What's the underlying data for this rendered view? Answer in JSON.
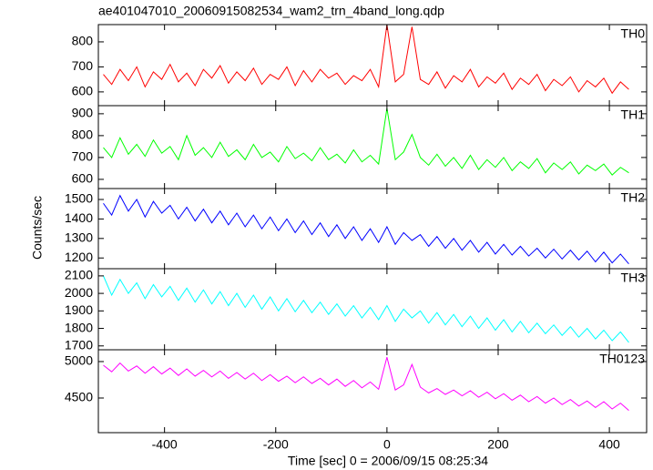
{
  "title": "ae401047010_20060915082534_wam2_trn_4band_long.qdp",
  "xlabel": "Time [sec] 0 = 2006/09/15 08:25:34",
  "ylabel": "Counts/sec",
  "chart_data": [
    {
      "type": "line",
      "x": [
        -510,
        -495,
        -480,
        -465,
        -450,
        -435,
        -420,
        -405,
        -390,
        -375,
        -360,
        -345,
        -330,
        -315,
        -300,
        -285,
        -270,
        -255,
        -240,
        -225,
        -210,
        -195,
        -180,
        -165,
        -150,
        -135,
        -120,
        -105,
        -90,
        -75,
        -60,
        -45,
        -30,
        -15,
        0,
        15,
        30,
        45,
        60,
        75,
        90,
        105,
        120,
        135,
        150,
        165,
        180,
        195,
        210,
        225,
        240,
        255,
        270,
        285,
        300,
        315,
        330,
        345,
        360,
        375,
        390,
        405,
        420,
        435
      ],
      "series": [
        {
          "name": "TH0",
          "color": "#ff0000",
          "values": [
            670,
            630,
            690,
            645,
            700,
            620,
            680,
            650,
            710,
            640,
            675,
            625,
            690,
            655,
            705,
            635,
            680,
            645,
            695,
            630,
            670,
            650,
            700,
            625,
            685,
            640,
            690,
            655,
            675,
            630,
            665,
            645,
            690,
            620,
            869,
            640,
            670,
            860,
            650,
            630,
            680,
            615,
            665,
            640,
            690,
            620,
            660,
            635,
            675,
            610,
            655,
            630,
            670,
            605,
            650,
            625,
            660,
            600,
            645,
            620,
            655,
            595,
            640,
            610
          ]
        }
      ],
      "xlim": [
        -519,
        467
      ],
      "xticks": [
        -400,
        -200,
        0,
        200,
        400
      ],
      "ylim": [
        545,
        869
      ],
      "yticks": [
        600,
        700,
        800
      ]
    },
    {
      "type": "line",
      "x": [
        -510,
        -495,
        -480,
        -465,
        -450,
        -435,
        -420,
        -405,
        -390,
        -375,
        -360,
        -345,
        -330,
        -315,
        -300,
        -285,
        -270,
        -255,
        -240,
        -225,
        -210,
        -195,
        -180,
        -165,
        -150,
        -135,
        -120,
        -105,
        -90,
        -75,
        -60,
        -45,
        -30,
        -15,
        0,
        15,
        30,
        45,
        60,
        75,
        90,
        105,
        120,
        135,
        150,
        165,
        180,
        195,
        210,
        225,
        240,
        255,
        270,
        285,
        300,
        315,
        330,
        345,
        360,
        375,
        390,
        405,
        420,
        435
      ],
      "series": [
        {
          "name": "TH1",
          "color": "#00ff00",
          "values": [
            745,
            700,
            790,
            715,
            760,
            705,
            780,
            720,
            750,
            690,
            800,
            710,
            745,
            700,
            770,
            705,
            735,
            690,
            760,
            700,
            725,
            680,
            750,
            695,
            720,
            685,
            745,
            690,
            715,
            675,
            735,
            680,
            710,
            670,
            925,
            690,
            725,
            805,
            700,
            665,
            715,
            660,
            700,
            650,
            710,
            645,
            690,
            655,
            700,
            640,
            680,
            650,
            695,
            630,
            675,
            645,
            680,
            625,
            665,
            640,
            670,
            620,
            655,
            630
          ]
        }
      ],
      "xlim": [
        -519,
        467
      ],
      "xticks": [
        -400,
        -200,
        0,
        200,
        400
      ],
      "ylim": [
        558,
        937
      ],
      "yticks": [
        600,
        700,
        800,
        900
      ]
    },
    {
      "type": "line",
      "x": [
        -510,
        -495,
        -480,
        -465,
        -450,
        -435,
        -420,
        -405,
        -390,
        -375,
        -360,
        -345,
        -330,
        -315,
        -300,
        -285,
        -270,
        -255,
        -240,
        -225,
        -210,
        -195,
        -180,
        -165,
        -150,
        -135,
        -120,
        -105,
        -90,
        -75,
        -60,
        -45,
        -30,
        -15,
        0,
        15,
        30,
        45,
        60,
        75,
        90,
        105,
        120,
        135,
        150,
        165,
        180,
        195,
        210,
        225,
        240,
        255,
        270,
        285,
        300,
        315,
        330,
        345,
        360,
        375,
        390,
        405,
        420,
        435
      ],
      "series": [
        {
          "name": "TH2",
          "color": "#0000ff",
          "values": [
            1480,
            1420,
            1520,
            1440,
            1500,
            1410,
            1490,
            1430,
            1470,
            1400,
            1460,
            1390,
            1450,
            1380,
            1440,
            1370,
            1430,
            1360,
            1420,
            1350,
            1410,
            1340,
            1400,
            1330,
            1390,
            1320,
            1380,
            1310,
            1370,
            1300,
            1360,
            1290,
            1350,
            1280,
            1360,
            1270,
            1330,
            1290,
            1320,
            1260,
            1310,
            1250,
            1300,
            1240,
            1290,
            1230,
            1280,
            1220,
            1270,
            1215,
            1260,
            1210,
            1250,
            1200,
            1245,
            1195,
            1240,
            1190,
            1235,
            1180,
            1230,
            1175,
            1220,
            1170
          ]
        }
      ],
      "xlim": [
        -519,
        467
      ],
      "xticks": [
        -400,
        -200,
        0,
        200,
        400
      ],
      "ylim": [
        1145,
        1556
      ],
      "yticks": [
        1200,
        1300,
        1400,
        1500
      ]
    },
    {
      "type": "line",
      "x": [
        -510,
        -495,
        -480,
        -465,
        -450,
        -435,
        -420,
        -405,
        -390,
        -375,
        -360,
        -345,
        -330,
        -315,
        -300,
        -285,
        -270,
        -255,
        -240,
        -225,
        -210,
        -195,
        -180,
        -165,
        -150,
        -135,
        -120,
        -105,
        -90,
        -75,
        -60,
        -45,
        -30,
        -15,
        0,
        15,
        30,
        45,
        60,
        75,
        90,
        105,
        120,
        135,
        150,
        165,
        180,
        195,
        210,
        225,
        240,
        255,
        270,
        285,
        300,
        315,
        330,
        345,
        360,
        375,
        390,
        405,
        420,
        435
      ],
      "series": [
        {
          "name": "TH3",
          "color": "#00ffff",
          "values": [
            2100,
            1990,
            2080,
            2000,
            2060,
            1970,
            2050,
            1980,
            2040,
            1960,
            2030,
            1950,
            2020,
            1940,
            2010,
            1930,
            2000,
            1920,
            1990,
            1910,
            1980,
            1900,
            1970,
            1895,
            1960,
            1890,
            1950,
            1880,
            1940,
            1870,
            1930,
            1860,
            1920,
            1850,
            1930,
            1840,
            1910,
            1860,
            1900,
            1830,
            1890,
            1820,
            1880,
            1810,
            1870,
            1800,
            1860,
            1790,
            1850,
            1780,
            1840,
            1775,
            1830,
            1770,
            1820,
            1760,
            1810,
            1750,
            1800,
            1740,
            1790,
            1730,
            1780,
            1720
          ]
        }
      ],
      "xlim": [
        -519,
        467
      ],
      "xticks": [
        -400,
        -200,
        0,
        200,
        400
      ],
      "ylim": [
        1678,
        2141
      ],
      "yticks": [
        1700,
        1800,
        1900,
        2000,
        2100
      ]
    },
    {
      "type": "line",
      "x": [
        -510,
        -495,
        -480,
        -465,
        -450,
        -435,
        -420,
        -405,
        -390,
        -375,
        -360,
        -345,
        -330,
        -315,
        -300,
        -285,
        -270,
        -255,
        -240,
        -225,
        -210,
        -195,
        -180,
        -165,
        -150,
        -135,
        -120,
        -105,
        -90,
        -75,
        -60,
        -45,
        -30,
        -15,
        0,
        15,
        30,
        45,
        60,
        75,
        90,
        105,
        120,
        135,
        150,
        165,
        180,
        195,
        210,
        225,
        240,
        255,
        270,
        285,
        300,
        315,
        330,
        345,
        360,
        375,
        390,
        405,
        420,
        435
      ],
      "series": [
        {
          "name": "TH0123",
          "color": "#ff00ff",
          "values": [
            4950,
            4860,
            4980,
            4870,
            4940,
            4840,
            4930,
            4830,
            4910,
            4810,
            4900,
            4800,
            4880,
            4790,
            4870,
            4770,
            4850,
            4760,
            4840,
            4740,
            4820,
            4730,
            4800,
            4710,
            4790,
            4700,
            4770,
            4680,
            4760,
            4660,
            4740,
            4640,
            4720,
            4620,
            5060,
            4610,
            4680,
            4960,
            4650,
            4570,
            4630,
            4550,
            4610,
            4530,
            4600,
            4510,
            4580,
            4490,
            4560,
            4470,
            4540,
            4450,
            4520,
            4430,
            4500,
            4410,
            4480,
            4390,
            4460,
            4370,
            4450,
            4350,
            4430,
            4330
          ]
        }
      ],
      "xlim": [
        -519,
        467
      ],
      "xticks": [
        -400,
        -200,
        0,
        200,
        400
      ],
      "ylim": [
        4025,
        5162
      ],
      "yticks": [
        4500,
        5000
      ]
    }
  ]
}
